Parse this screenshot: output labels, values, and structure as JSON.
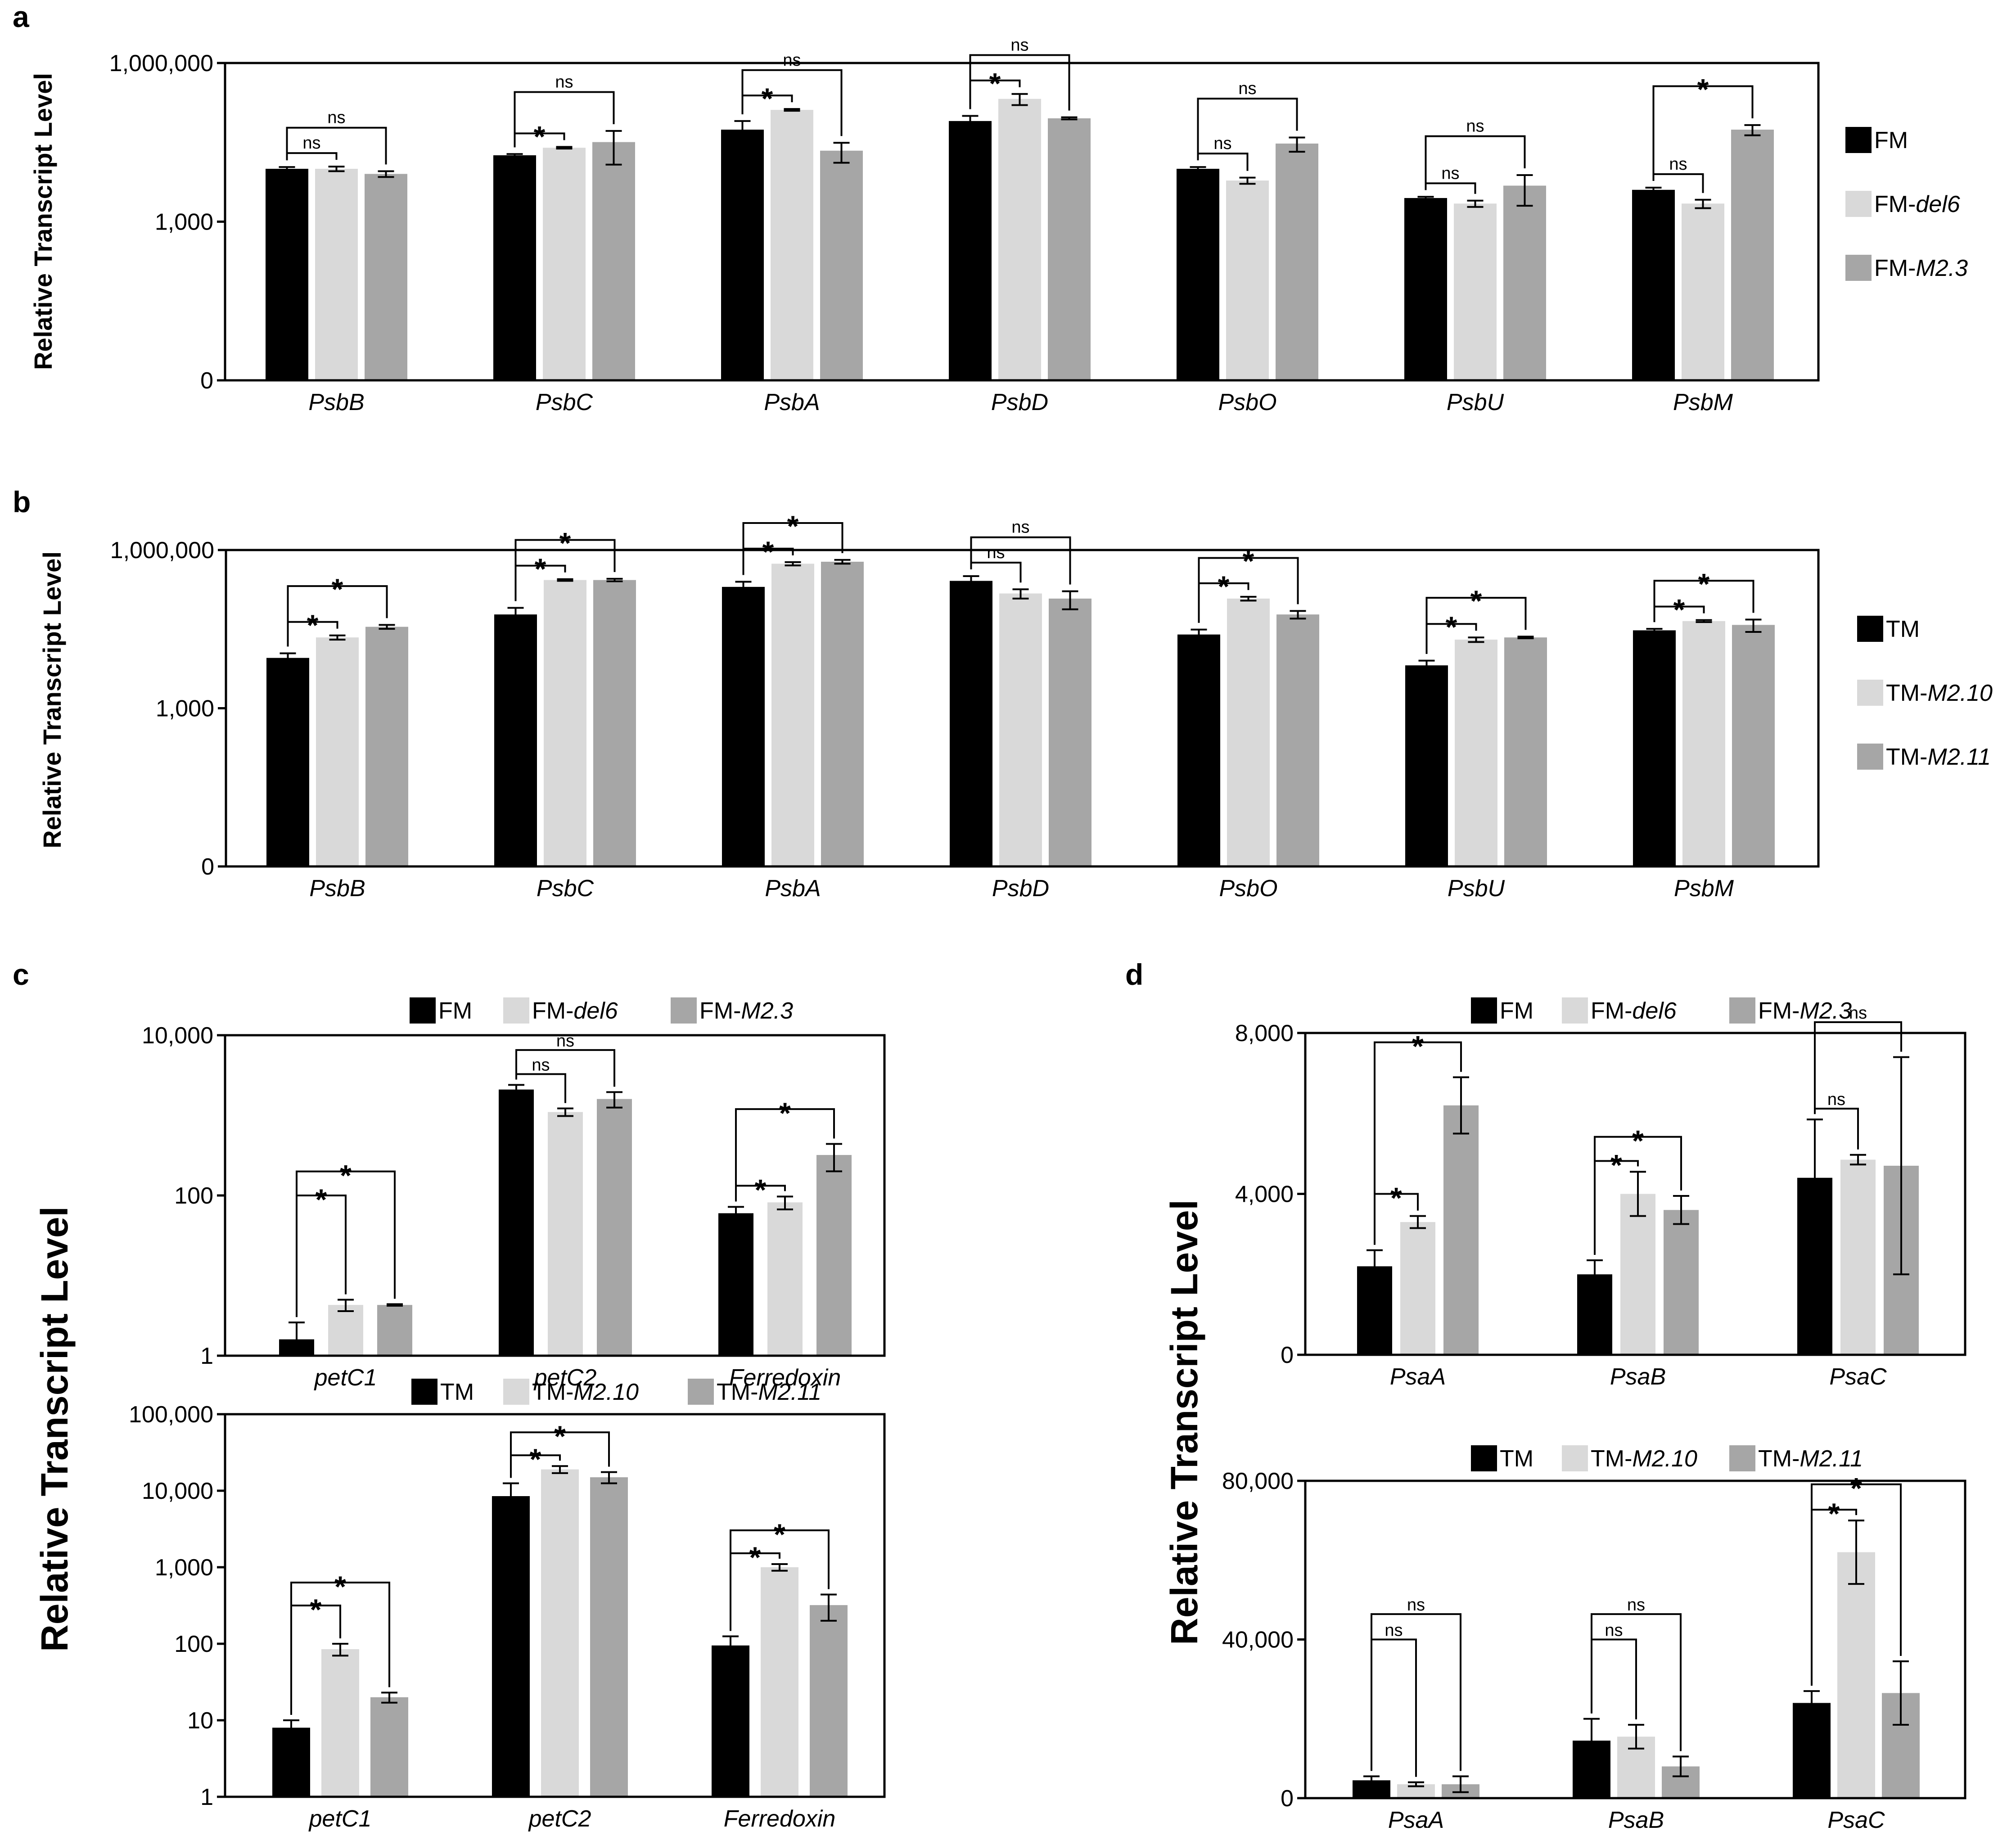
{
  "colors": {
    "s0": "#000000",
    "s1": "#d9d9d9",
    "s2": "#a6a6a6"
  },
  "panels": [
    {
      "letter": "a",
      "ylabel": "Relative Transcript Level",
      "scale": "log3",
      "ymin": 1,
      "ymax": 1000000,
      "ticks": [
        {
          "v": 1,
          "label": "0"
        },
        {
          "v": 1000,
          "label": "1,000"
        },
        {
          "v": 1000000,
          "label": "1,000,000"
        }
      ],
      "legend": [
        {
          "parts": [
            {
              "t": "FM",
              "i": false
            }
          ]
        },
        {
          "parts": [
            {
              "t": "FM-",
              "i": false
            },
            {
              "t": "del6",
              "i": true
            }
          ]
        },
        {
          "parts": [
            {
              "t": "FM-",
              "i": false
            },
            {
              "t": "M2.3",
              "i": true
            }
          ]
        }
      ],
      "categories": [
        "PsbB",
        "PsbC",
        "PsbA",
        "PsbD",
        "PsbO",
        "PsbU",
        "PsbM"
      ],
      "values": [
        [
          10000,
          10000,
          8000
        ],
        [
          18000,
          25000,
          32000
        ],
        [
          55000,
          130000,
          22000
        ],
        [
          80000,
          210000,
          90000
        ],
        [
          10000,
          6000,
          30000
        ],
        [
          2800,
          2200,
          4800
        ],
        [
          4000,
          2200,
          55000
        ]
      ],
      "errors": [
        [
          800,
          1000,
          1000
        ],
        [
          1000,
          900,
          20000
        ],
        [
          25000,
          5000,
          9000
        ],
        [
          20000,
          50000,
          4000
        ],
        [
          800,
          800,
          9000
        ],
        [
          150,
          300,
          2800
        ],
        [
          400,
          400,
          12000
        ]
      ],
      "comparisons": [
        {
          "cat": 0,
          "to": 1,
          "label": "ns"
        },
        {
          "cat": 0,
          "to": 2,
          "label": "ns"
        },
        {
          "cat": 1,
          "to": 1,
          "label": "*"
        },
        {
          "cat": 1,
          "to": 2,
          "label": "ns"
        },
        {
          "cat": 2,
          "to": 1,
          "label": "*"
        },
        {
          "cat": 2,
          "to": 2,
          "label": "ns"
        },
        {
          "cat": 3,
          "to": 1,
          "label": "*"
        },
        {
          "cat": 3,
          "to": 2,
          "label": "ns"
        },
        {
          "cat": 4,
          "to": 1,
          "label": "ns"
        },
        {
          "cat": 4,
          "to": 2,
          "label": "ns"
        },
        {
          "cat": 5,
          "to": 1,
          "label": "ns"
        },
        {
          "cat": 5,
          "to": 2,
          "label": "ns"
        },
        {
          "cat": 6,
          "to": 1,
          "label": "ns"
        },
        {
          "cat": 6,
          "to": 2,
          "label": "*"
        }
      ]
    },
    {
      "letter": "b",
      "ylabel": "Relative Transcript Level",
      "scale": "log3",
      "ymin": 1,
      "ymax": 1000000,
      "ticks": [
        {
          "v": 1,
          "label": "0"
        },
        {
          "v": 1000,
          "label": "1,000"
        },
        {
          "v": 1000000,
          "label": "1,000,000"
        }
      ],
      "legend": [
        {
          "parts": [
            {
              "t": "TM",
              "i": false
            }
          ]
        },
        {
          "parts": [
            {
              "t": "TM-",
              "i": false
            },
            {
              "t": "M2.10",
              "i": true
            }
          ]
        },
        {
          "parts": [
            {
              "t": "TM-",
              "i": false
            },
            {
              "t": "M2.11",
              "i": true
            }
          ]
        }
      ],
      "categories": [
        "PsbB",
        "PsbC",
        "PsbA",
        "PsbD",
        "PsbO",
        "PsbU",
        "PsbM"
      ],
      "values": [
        [
          9000,
          22000,
          35000
        ],
        [
          60000,
          270000,
          270000
        ],
        [
          200000,
          550000,
          600000
        ],
        [
          260000,
          150000,
          120000
        ],
        [
          25000,
          120000,
          60000
        ],
        [
          6500,
          20000,
          22000
        ],
        [
          30000,
          45000,
          38000
        ]
      ],
      "errors": [
        [
          2000,
          2000,
          3000
        ],
        [
          20000,
          10000,
          15000
        ],
        [
          50000,
          40000,
          50000
        ],
        [
          60000,
          30000,
          45000
        ],
        [
          6000,
          10000,
          10000
        ],
        [
          1500,
          2000,
          800
        ],
        [
          2000,
          2000,
          10000
        ]
      ],
      "comparisons": [
        {
          "cat": 0,
          "to": 1,
          "label": "*"
        },
        {
          "cat": 0,
          "to": 2,
          "label": "*"
        },
        {
          "cat": 1,
          "to": 1,
          "label": "*"
        },
        {
          "cat": 1,
          "to": 2,
          "label": "*"
        },
        {
          "cat": 2,
          "to": 1,
          "label": "*"
        },
        {
          "cat": 2,
          "to": 2,
          "label": "*"
        },
        {
          "cat": 3,
          "to": 1,
          "label": "ns"
        },
        {
          "cat": 3,
          "to": 2,
          "label": "ns"
        },
        {
          "cat": 4,
          "to": 1,
          "label": "*"
        },
        {
          "cat": 4,
          "to": 2,
          "label": "*"
        },
        {
          "cat": 5,
          "to": 1,
          "label": "*"
        },
        {
          "cat": 5,
          "to": 2,
          "label": "*"
        },
        {
          "cat": 6,
          "to": 1,
          "label": "*"
        },
        {
          "cat": 6,
          "to": 2,
          "label": "*"
        }
      ]
    },
    {
      "letter": "c",
      "ylabel": "Relative Transcript Level",
      "scale": "log2",
      "ymin": 1,
      "ymax": 10000,
      "ticks": [
        {
          "v": 1,
          "label": "1"
        },
        {
          "v": 100,
          "label": "100"
        },
        {
          "v": 10000,
          "label": "10,000"
        }
      ],
      "legend": [
        {
          "parts": [
            {
              "t": "FM",
              "i": false
            }
          ]
        },
        {
          "parts": [
            {
              "t": "FM-",
              "i": false
            },
            {
              "t": "del6",
              "i": true
            }
          ]
        },
        {
          "parts": [
            {
              "t": "FM-",
              "i": false
            },
            {
              "t": "M2.3",
              "i": true
            }
          ]
        }
      ],
      "categories": [
        "petC1",
        "petC2",
        "Ferredoxin"
      ],
      "values": [
        [
          1.6,
          4.3,
          4.3
        ],
        [
          2100,
          1100,
          1600
        ],
        [
          60,
          82,
          320
        ]
      ],
      "errors": [
        [
          1.0,
          0.7,
          0.1
        ],
        [
          300,
          120,
          350
        ],
        [
          12,
          15,
          120
        ]
      ],
      "comparisons": [
        {
          "cat": 0,
          "to": 1,
          "label": "*"
        },
        {
          "cat": 0,
          "to": 2,
          "label": "*"
        },
        {
          "cat": 1,
          "to": 1,
          "label": "ns"
        },
        {
          "cat": 1,
          "to": 2,
          "label": "ns"
        },
        {
          "cat": 2,
          "to": 1,
          "label": "*"
        },
        {
          "cat": 2,
          "to": 2,
          "label": "*"
        }
      ]
    },
    {
      "scale": "log5",
      "ymin": 1,
      "ymax": 100000,
      "ticks": [
        {
          "v": 1,
          "label": "1"
        },
        {
          "v": 10,
          "label": "10"
        },
        {
          "v": 100,
          "label": "100"
        },
        {
          "v": 1000,
          "label": "1,000"
        },
        {
          "v": 10000,
          "label": "10,000"
        },
        {
          "v": 100000,
          "label": "100,000"
        }
      ],
      "legend": [
        {
          "parts": [
            {
              "t": "TM",
              "i": false
            }
          ]
        },
        {
          "parts": [
            {
              "t": "TM-",
              "i": false
            },
            {
              "t": "M2.10",
              "i": true
            }
          ]
        },
        {
          "parts": [
            {
              "t": "TM-",
              "i": false
            },
            {
              "t": "M2.11",
              "i": true
            }
          ]
        }
      ],
      "categories": [
        "petC1",
        "petC2",
        "Ferredoxin"
      ],
      "values": [
        [
          8,
          85,
          20
        ],
        [
          8500,
          19000,
          15000
        ],
        [
          95,
          1000,
          320
        ]
      ],
      "errors": [
        [
          2,
          15,
          3
        ],
        [
          4000,
          2000,
          2500
        ],
        [
          30,
          100,
          120
        ]
      ],
      "comparisons": [
        {
          "cat": 0,
          "to": 1,
          "label": "*"
        },
        {
          "cat": 0,
          "to": 2,
          "label": "*"
        },
        {
          "cat": 1,
          "to": 1,
          "label": "*"
        },
        {
          "cat": 1,
          "to": 2,
          "label": "*"
        },
        {
          "cat": 2,
          "to": 1,
          "label": "*"
        },
        {
          "cat": 2,
          "to": 2,
          "label": "*"
        }
      ]
    },
    {
      "letter": "d",
      "ylabel": "Relative Transcript Level",
      "scale": "linear",
      "ymin": 0,
      "ymax": 8000,
      "ticks": [
        {
          "v": 0,
          "label": "0"
        },
        {
          "v": 4000,
          "label": "4,000"
        },
        {
          "v": 8000,
          "label": "8,000"
        }
      ],
      "legend": [
        {
          "parts": [
            {
              "t": "FM",
              "i": false
            }
          ]
        },
        {
          "parts": [
            {
              "t": "FM-",
              "i": false
            },
            {
              "t": "del6",
              "i": true
            }
          ]
        },
        {
          "parts": [
            {
              "t": "FM-",
              "i": false
            },
            {
              "t": "M2.3",
              "i": true
            }
          ]
        }
      ],
      "categories": [
        "PsaA",
        "PsaB",
        "PsaC"
      ],
      "values": [
        [
          2200,
          3300,
          6200
        ],
        [
          2000,
          4000,
          3600
        ],
        [
          4400,
          4850,
          4700
        ]
      ],
      "errors": [
        [
          400,
          150,
          700
        ],
        [
          350,
          550,
          350
        ],
        [
          1450,
          120,
          2700
        ]
      ],
      "comparisons": [
        {
          "cat": 0,
          "to": 1,
          "label": "*"
        },
        {
          "cat": 0,
          "to": 2,
          "label": "*"
        },
        {
          "cat": 1,
          "to": 1,
          "label": "*"
        },
        {
          "cat": 1,
          "to": 2,
          "label": "*"
        },
        {
          "cat": 2,
          "to": 1,
          "label": "ns"
        },
        {
          "cat": 2,
          "to": 2,
          "label": "ns"
        }
      ]
    },
    {
      "scale": "linear",
      "ymin": 0,
      "ymax": 80000,
      "ticks": [
        {
          "v": 0,
          "label": "0"
        },
        {
          "v": 40000,
          "label": "40,000"
        },
        {
          "v": 80000,
          "label": "80,000"
        }
      ],
      "legend": [
        {
          "parts": [
            {
              "t": "TM",
              "i": false
            }
          ]
        },
        {
          "parts": [
            {
              "t": "TM-",
              "i": false
            },
            {
              "t": "M2.10",
              "i": true
            }
          ]
        },
        {
          "parts": [
            {
              "t": "TM-",
              "i": false
            },
            {
              "t": "M2.11",
              "i": true
            }
          ]
        }
      ],
      "categories": [
        "PsaA",
        "PsaB",
        "PsaC"
      ],
      "values": [
        [
          4500,
          3500,
          3500
        ],
        [
          14500,
          15500,
          8000
        ],
        [
          24000,
          62000,
          26500
        ]
      ],
      "errors": [
        [
          1000,
          500,
          2000
        ],
        [
          5500,
          3000,
          2500
        ],
        [
          3000,
          8000,
          8000
        ]
      ],
      "comparisons": [
        {
          "cat": 0,
          "to": 1,
          "label": "ns"
        },
        {
          "cat": 0,
          "to": 2,
          "label": "ns"
        },
        {
          "cat": 1,
          "to": 1,
          "label": "ns"
        },
        {
          "cat": 1,
          "to": 2,
          "label": "ns"
        },
        {
          "cat": 2,
          "to": 1,
          "label": "*"
        },
        {
          "cat": 2,
          "to": 2,
          "label": "*"
        }
      ]
    }
  ],
  "chart_data": [
    {
      "type": "bar",
      "title": "a",
      "ylabel": "Relative Transcript Level",
      "yscale": "log",
      "ylim": [
        1,
        1000000
      ],
      "categories": [
        "PsbB",
        "PsbC",
        "PsbA",
        "PsbD",
        "PsbO",
        "PsbU",
        "PsbM"
      ],
      "series": [
        {
          "name": "FM",
          "values": [
            10000,
            18000,
            55000,
            80000,
            10000,
            2800,
            4000
          ]
        },
        {
          "name": "FM-del6",
          "values": [
            10000,
            25000,
            130000,
            210000,
            6000,
            2200,
            2200
          ]
        },
        {
          "name": "FM-M2.3",
          "values": [
            8000,
            32000,
            22000,
            90000,
            30000,
            4800,
            55000
          ]
        }
      ]
    },
    {
      "type": "bar",
      "title": "b",
      "ylabel": "Relative Transcript Level",
      "yscale": "log",
      "ylim": [
        1,
        1000000
      ],
      "categories": [
        "PsbB",
        "PsbC",
        "PsbA",
        "PsbD",
        "PsbO",
        "PsbU",
        "PsbM"
      ],
      "series": [
        {
          "name": "TM",
          "values": [
            9000,
            60000,
            200000,
            260000,
            25000,
            6500,
            30000
          ]
        },
        {
          "name": "TM-M2.10",
          "values": [
            22000,
            270000,
            550000,
            150000,
            120000,
            20000,
            45000
          ]
        },
        {
          "name": "TM-M2.11",
          "values": [
            35000,
            270000,
            600000,
            120000,
            60000,
            22000,
            38000
          ]
        }
      ]
    },
    {
      "type": "bar",
      "title": "c (top)",
      "ylabel": "Relative Transcript Level",
      "yscale": "log",
      "ylim": [
        1,
        10000
      ],
      "categories": [
        "petC1",
        "petC2",
        "Ferredoxin"
      ],
      "series": [
        {
          "name": "FM",
          "values": [
            1.6,
            2100,
            60
          ]
        },
        {
          "name": "FM-del6",
          "values": [
            4.3,
            1100,
            82
          ]
        },
        {
          "name": "FM-M2.3",
          "values": [
            4.3,
            1600,
            320
          ]
        }
      ]
    },
    {
      "type": "bar",
      "title": "c (bottom)",
      "ylabel": "Relative Transcript Level",
      "yscale": "log",
      "ylim": [
        1,
        100000
      ],
      "categories": [
        "petC1",
        "petC2",
        "Ferredoxin"
      ],
      "series": [
        {
          "name": "TM",
          "values": [
            8,
            8500,
            95
          ]
        },
        {
          "name": "TM-M2.10",
          "values": [
            85,
            19000,
            1000
          ]
        },
        {
          "name": "TM-M2.11",
          "values": [
            20,
            15000,
            320
          ]
        }
      ]
    },
    {
      "type": "bar",
      "title": "d (top)",
      "ylabel": "Relative Transcript Level",
      "ylim": [
        0,
        8000
      ],
      "categories": [
        "PsaA",
        "PsaB",
        "PsaC"
      ],
      "series": [
        {
          "name": "FM",
          "values": [
            2200,
            2000,
            4400
          ]
        },
        {
          "name": "FM-del6",
          "values": [
            3300,
            4000,
            4850
          ]
        },
        {
          "name": "FM-M2.3",
          "values": [
            6200,
            3600,
            4700
          ]
        }
      ]
    },
    {
      "type": "bar",
      "title": "d (bottom)",
      "ylabel": "Relative Transcript Level",
      "ylim": [
        0,
        80000
      ],
      "categories": [
        "PsaA",
        "PsaB",
        "PsaC"
      ],
      "series": [
        {
          "name": "TM",
          "values": [
            4500,
            14500,
            24000
          ]
        },
        {
          "name": "TM-M2.10",
          "values": [
            3500,
            15500,
            62000
          ]
        },
        {
          "name": "TM-M2.11",
          "values": [
            3500,
            8000,
            26500
          ]
        }
      ]
    }
  ]
}
